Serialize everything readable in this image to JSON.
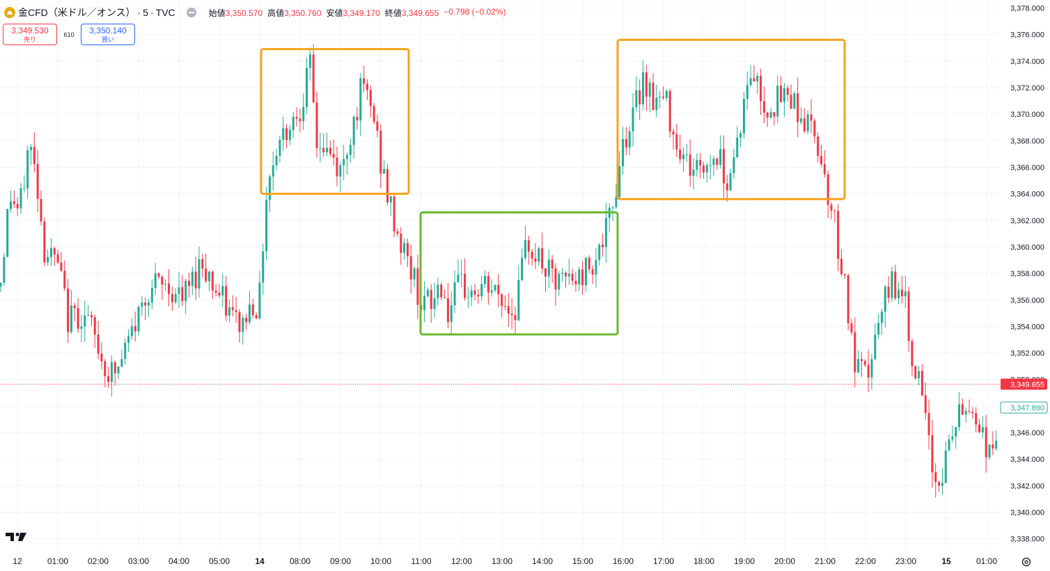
{
  "header": {
    "symbol_title": "金CFD（米ドル／オンス）",
    "timeframe": "5",
    "source": "TVC",
    "ohlc": [
      {
        "label": "始値",
        "value": "3,350.570"
      },
      {
        "label": "高値",
        "value": "3,350.760"
      },
      {
        "label": "安値",
        "value": "3,349.170"
      },
      {
        "label": "終値",
        "value": "3,349.655"
      }
    ],
    "change": "−0.798 (−0.02%)"
  },
  "trade": {
    "sell_price": "3,349.530",
    "sell_label": "売り",
    "spread": "610",
    "buy_price": "3,350.140",
    "buy_label": "買い"
  },
  "colors": {
    "up": "#22ab94",
    "down": "#f23645",
    "orange_box": "#f7a21b",
    "green_box": "#6ab82c",
    "grid": "#f0f3fa"
  },
  "icons": [
    "gold-icon",
    "collapse-icon",
    "tradingview-logo-icon",
    "settings-icon"
  ],
  "chart_data": {
    "type": "candlestick",
    "ylim": [
      3337.2,
      3378.6
    ],
    "y_ticks": [
      "3,338.000",
      "3,340.000",
      "3,342.000",
      "3,344.000",
      "3,346.000",
      "3,348.000",
      "3,350.000",
      "3,352.000",
      "3,354.000",
      "3,356.000",
      "3,358.000",
      "3,360.000",
      "3,362.000",
      "3,364.000",
      "3,366.000",
      "3,368.000",
      "3,370.000",
      "3,372.000",
      "3,374.000",
      "3,376.000",
      "3,378.000"
    ],
    "x_ticks": [
      "12",
      "01:00",
      "02:00",
      "03:00",
      "04:00",
      "05:00",
      "14",
      "08:00",
      "09:00",
      "10:00",
      "11:00",
      "12:00",
      "13:00",
      "14:00",
      "15:00",
      "16:00",
      "17:00",
      "18:00",
      "19:00",
      "20:00",
      "21:00",
      "22:00",
      "23:00",
      "15",
      "01:00"
    ],
    "current_price": {
      "value": 3349.655,
      "label": "3,349.655"
    },
    "secondary_price": {
      "value": 3347.89,
      "label": "3,347.890"
    },
    "path_anchors": [
      {
        "x": 0,
        "y": 3357.0
      },
      {
        "x": 14,
        "y": 3364.0
      },
      {
        "x": 28,
        "y": 3362.5
      },
      {
        "x": 42,
        "y": 3368.0
      },
      {
        "x": 56,
        "y": 3364.0
      },
      {
        "x": 62,
        "y": 3360.0
      },
      {
        "x": 84,
        "y": 3358.5
      },
      {
        "x": 98,
        "y": 3354.5
      },
      {
        "x": 112,
        "y": 3355.0
      },
      {
        "x": 126,
        "y": 3354.5
      },
      {
        "x": 140,
        "y": 3352.5
      },
      {
        "x": 154,
        "y": 3350.5
      },
      {
        "x": 168,
        "y": 3350.5
      },
      {
        "x": 182,
        "y": 3352.5
      },
      {
        "x": 196,
        "y": 3354.5
      },
      {
        "x": 214,
        "y": 3357.0
      },
      {
        "x": 240,
        "y": 3357.0
      },
      {
        "x": 262,
        "y": 3356.0
      },
      {
        "x": 290,
        "y": 3359.0
      },
      {
        "x": 312,
        "y": 3356.5
      },
      {
        "x": 330,
        "y": 3355.0
      },
      {
        "x": 346,
        "y": 3354.0
      },
      {
        "x": 364,
        "y": 3356.0
      },
      {
        "x": 372,
        "y": 3355.5
      },
      {
        "x": 382,
        "y": 3364.0
      },
      {
        "x": 396,
        "y": 3367.5
      },
      {
        "x": 412,
        "y": 3369.0
      },
      {
        "x": 430,
        "y": 3370.5
      },
      {
        "x": 446,
        "y": 3373.5
      },
      {
        "x": 454,
        "y": 3368.0
      },
      {
        "x": 472,
        "y": 3367.0
      },
      {
        "x": 490,
        "y": 3365.5
      },
      {
        "x": 505,
        "y": 3369.0
      },
      {
        "x": 520,
        "y": 3372.0
      },
      {
        "x": 536,
        "y": 3370.0
      },
      {
        "x": 548,
        "y": 3366.0
      },
      {
        "x": 560,
        "y": 3363.0
      },
      {
        "x": 574,
        "y": 3360.5
      },
      {
        "x": 592,
        "y": 3358.0
      },
      {
        "x": 604,
        "y": 3356.0
      },
      {
        "x": 620,
        "y": 3355.5
      },
      {
        "x": 632,
        "y": 3357.5
      },
      {
        "x": 644,
        "y": 3355.0
      },
      {
        "x": 660,
        "y": 3357.0
      },
      {
        "x": 680,
        "y": 3356.5
      },
      {
        "x": 700,
        "y": 3357.0
      },
      {
        "x": 720,
        "y": 3356.0
      },
      {
        "x": 738,
        "y": 3355.0
      },
      {
        "x": 758,
        "y": 3360.5
      },
      {
        "x": 780,
        "y": 3358.5
      },
      {
        "x": 800,
        "y": 3357.0
      },
      {
        "x": 812,
        "y": 3357.5
      },
      {
        "x": 830,
        "y": 3357.5
      },
      {
        "x": 850,
        "y": 3359.0
      },
      {
        "x": 868,
        "y": 3360.5
      },
      {
        "x": 882,
        "y": 3363.5
      },
      {
        "x": 894,
        "y": 3368.0
      },
      {
        "x": 908,
        "y": 3369.5
      },
      {
        "x": 924,
        "y": 3373.0
      },
      {
        "x": 940,
        "y": 3371.0
      },
      {
        "x": 956,
        "y": 3371.0
      },
      {
        "x": 972,
        "y": 3368.0
      },
      {
        "x": 990,
        "y": 3366.0
      },
      {
        "x": 1010,
        "y": 3366.0
      },
      {
        "x": 1030,
        "y": 3367.0
      },
      {
        "x": 1046,
        "y": 3365.0
      },
      {
        "x": 1066,
        "y": 3370.0
      },
      {
        "x": 1080,
        "y": 3373.5
      },
      {
        "x": 1098,
        "y": 3370.5
      },
      {
        "x": 1116,
        "y": 3371.0
      },
      {
        "x": 1136,
        "y": 3371.5
      },
      {
        "x": 1154,
        "y": 3369.5
      },
      {
        "x": 1172,
        "y": 3368.5
      },
      {
        "x": 1186,
        "y": 3365.0
      },
      {
        "x": 1198,
        "y": 3362.0
      },
      {
        "x": 1214,
        "y": 3357.0
      },
      {
        "x": 1226,
        "y": 3351.0
      },
      {
        "x": 1244,
        "y": 3350.0
      },
      {
        "x": 1262,
        "y": 3354.0
      },
      {
        "x": 1280,
        "y": 3357.5
      },
      {
        "x": 1296,
        "y": 3357.0
      },
      {
        "x": 1310,
        "y": 3352.0
      },
      {
        "x": 1324,
        "y": 3348.5
      },
      {
        "x": 1336,
        "y": 3344.0
      },
      {
        "x": 1348,
        "y": 3342.0
      },
      {
        "x": 1360,
        "y": 3344.5
      },
      {
        "x": 1374,
        "y": 3347.0
      },
      {
        "x": 1392,
        "y": 3348.0
      },
      {
        "x": 1408,
        "y": 3346.5
      },
      {
        "x": 1422,
        "y": 3344.0
      },
      {
        "x": 1434,
        "y": 3347.0
      }
    ],
    "highlight_boxes": [
      {
        "name": "orange-range-box-1",
        "color": "orange",
        "x_from": "08:00",
        "x_to": "11:00",
        "y_from": 3364.0,
        "y_to": 3374.9
      },
      {
        "name": "green-range-box",
        "color": "green",
        "x_from": "11:00",
        "x_to": "16:00",
        "y_from": 3353.4,
        "y_to": 3362.6
      },
      {
        "name": "orange-range-box-2",
        "color": "orange",
        "x_from": "16:00",
        "x_to": "21:30",
        "y_from": 3363.6,
        "y_to": 3375.6
      }
    ]
  }
}
